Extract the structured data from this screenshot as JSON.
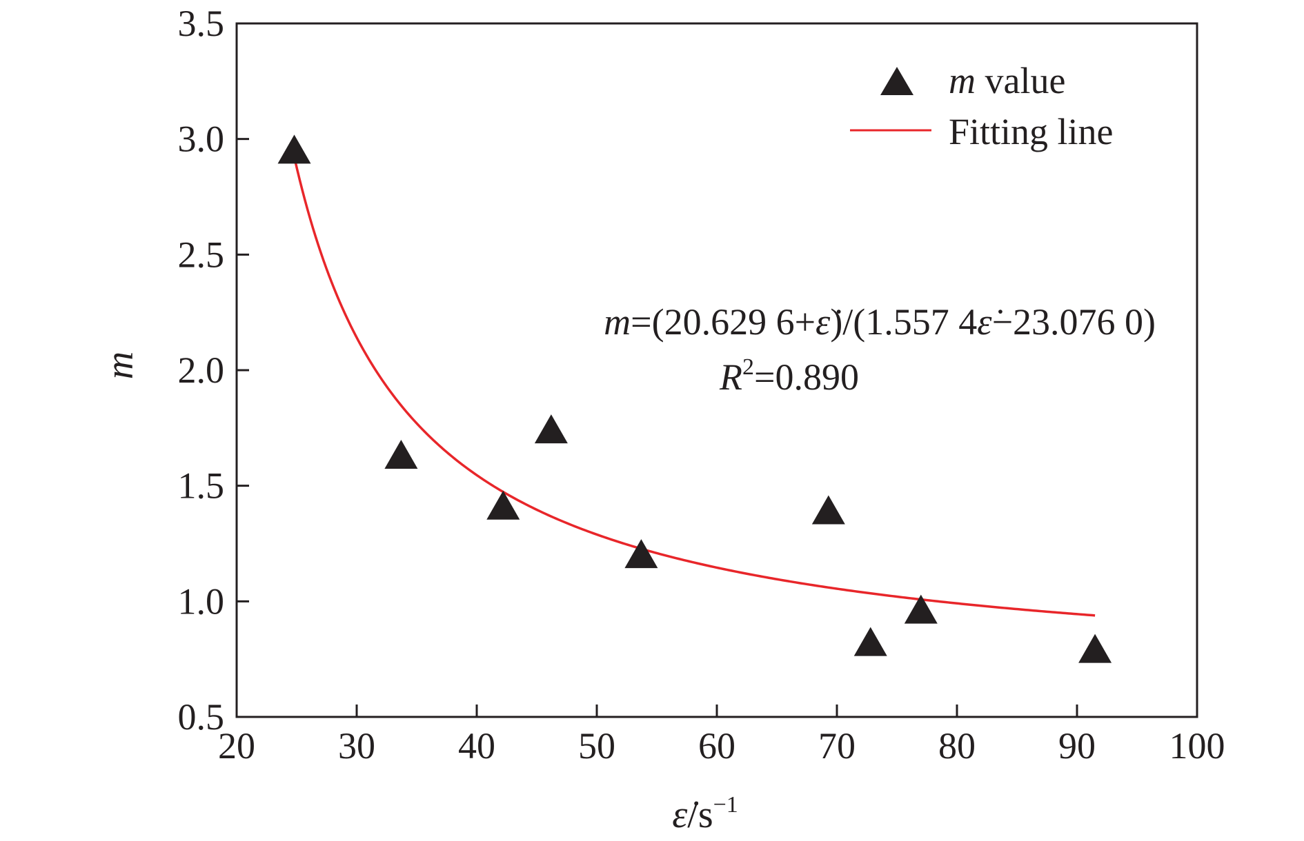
{
  "chart_data": {
    "type": "scatter",
    "xlabel": "ε̇/s⁻¹",
    "ylabel": "m",
    "xlim": [
      20,
      100
    ],
    "ylim": [
      0.5,
      3.5
    ],
    "x_ticks": [
      20,
      30,
      40,
      50,
      60,
      70,
      80,
      90,
      100
    ],
    "y_ticks": [
      0.5,
      1.0,
      1.5,
      2.0,
      2.5,
      3.0,
      3.5
    ],
    "x_tick_labels": [
      "20",
      "30",
      "40",
      "50",
      "60",
      "70",
      "80",
      "90",
      "100"
    ],
    "y_tick_labels": [
      "0.5",
      "1.0",
      "1.5",
      "2.0",
      "2.5",
      "3.0",
      "3.5"
    ],
    "grid": false,
    "legend_position": "top-right",
    "series": [
      {
        "name": "m value",
        "kind": "scatter",
        "marker": "triangle",
        "color": "#231f20",
        "x": [
          24.8,
          33.7,
          42.2,
          46.2,
          53.7,
          69.3,
          72.8,
          77.0,
          91.5
        ],
        "y": [
          2.95,
          1.63,
          1.41,
          1.74,
          1.2,
          1.39,
          0.82,
          0.96,
          0.79
        ]
      },
      {
        "name": "Fitting line",
        "kind": "line",
        "color": "#e8262a",
        "function": "m=(20.6296+x)/(1.5574x-23.0760)",
        "x_range": [
          24.8,
          91.5
        ]
      }
    ],
    "annotations": {
      "equation_m": "m",
      "equation_body": "=(20.629 6+",
      "equation_eps1": "ε̇",
      "equation_mid": ")/(1.557 4",
      "equation_eps2": "ε̇",
      "equation_tail": "−23.076 0)",
      "r2_R": "R",
      "r2_sup": "2",
      "r2_value": "=0.890"
    },
    "legend": {
      "m_italic": "m",
      "m_rest": " value",
      "fit_label": "Fitting line"
    },
    "x_axis_label": {
      "eps": "ε̇",
      "unit": "/s",
      "sup": "−1"
    }
  }
}
